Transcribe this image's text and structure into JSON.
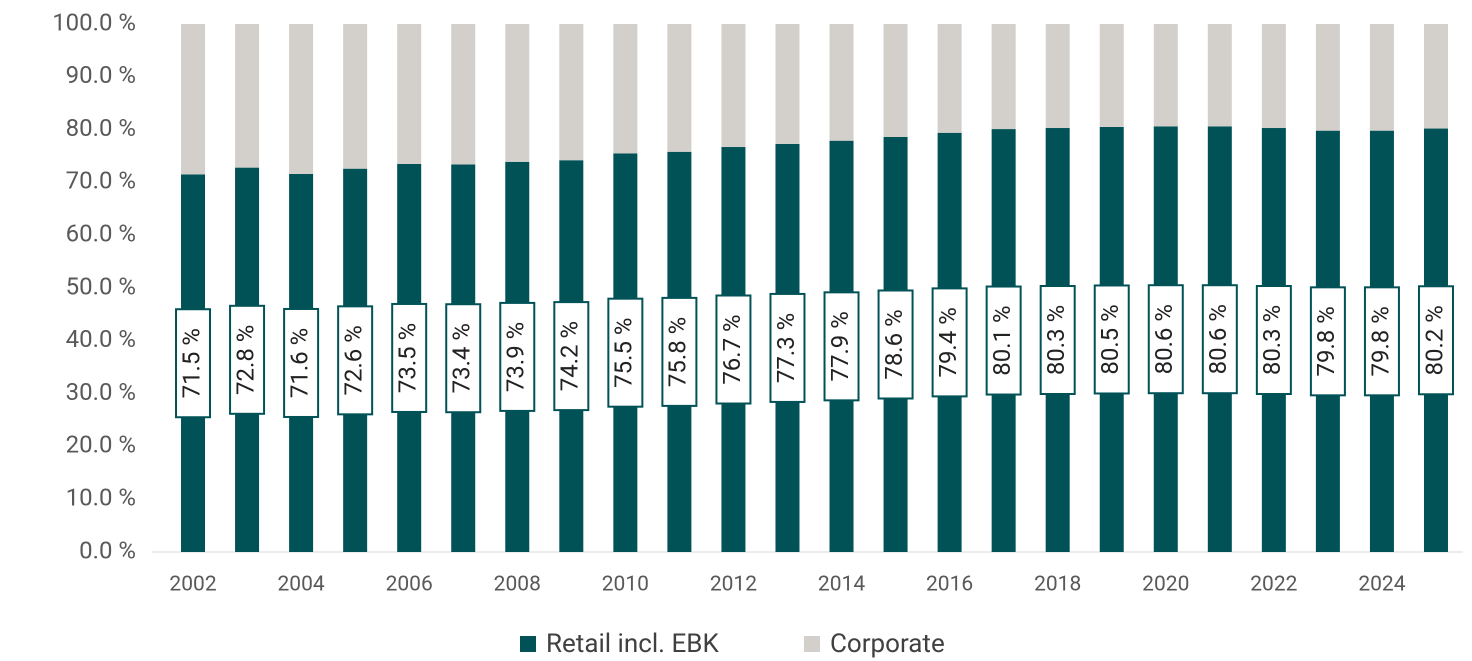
{
  "chart_data": {
    "type": "stacked_bar",
    "categories": [
      "2002",
      null,
      "2004",
      null,
      "2006",
      null,
      "2008",
      null,
      "2010",
      null,
      "2012",
      null,
      "2014",
      null,
      "2016",
      null,
      "2018",
      null,
      "2020",
      null,
      "2022",
      null,
      "2024",
      null
    ],
    "series": [
      {
        "name": "Retail incl. EBK",
        "color": "#005257",
        "values": [
          71.5,
          72.8,
          71.6,
          72.6,
          73.5,
          73.4,
          73.9,
          74.2,
          75.5,
          75.8,
          76.7,
          77.3,
          77.9,
          78.6,
          79.4,
          80.1,
          80.3,
          80.5,
          80.6,
          80.6,
          80.3,
          79.8,
          79.8,
          80.2
        ],
        "value_labels": [
          "71.5 %",
          "72.8 %",
          "71.6 %",
          "72.6 %",
          "73.5 %",
          "73.4 %",
          "73.9 %",
          "74.2 %",
          "75.5 %",
          "75.8 %",
          "76.7 %",
          "77.3 %",
          "77.9 %",
          "78.6 %",
          "79.4 %",
          "80.1 %",
          "80.3 %",
          "80.5 %",
          "80.6 %",
          "80.6 %",
          "80.3 %",
          "79.8 %",
          "79.8 %",
          "80.2 %"
        ]
      },
      {
        "name": "Corporate",
        "color": "#d3d0cc",
        "values": [
          28.5,
          27.2,
          28.4,
          27.4,
          26.5,
          26.6,
          26.1,
          25.8,
          24.5,
          24.2,
          23.3,
          22.7,
          22.1,
          21.4,
          20.6,
          19.9,
          19.7,
          19.5,
          19.4,
          19.4,
          19.7,
          20.2,
          20.2,
          19.8
        ]
      }
    ],
    "ylim": [
      0,
      100
    ],
    "yticks": [
      {
        "value": 0,
        "label": "0.0 %"
      },
      {
        "value": 10,
        "label": "10.0 %"
      },
      {
        "value": 20,
        "label": "20.0 %"
      },
      {
        "value": 30,
        "label": "30.0 %"
      },
      {
        "value": 40,
        "label": "40.0 %"
      },
      {
        "value": 50,
        "label": "50.0 %"
      },
      {
        "value": 60,
        "label": "60.0 %"
      },
      {
        "value": 70,
        "label": "70.0 %"
      },
      {
        "value": 80,
        "label": "80.0 %"
      },
      {
        "value": 90,
        "label": "90.0 %"
      },
      {
        "value": 100,
        "label": "100.0 %"
      }
    ],
    "legend": "bottom"
  }
}
